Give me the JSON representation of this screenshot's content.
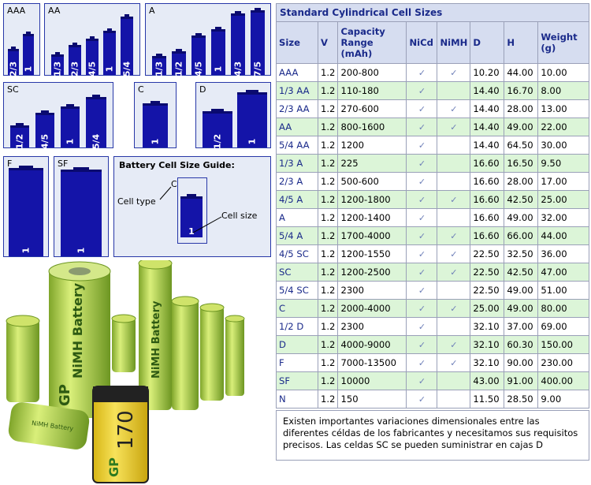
{
  "guide": {
    "panels": {
      "aaa": {
        "label": "AAA",
        "cells": [
          "2/3",
          "1"
        ]
      },
      "aa": {
        "label": "AA",
        "cells": [
          "1/3",
          "2/3",
          "4/5",
          "1",
          "5/4"
        ]
      },
      "a": {
        "label": "A",
        "cells": [
          "1/3",
          "1/2",
          "4/5",
          "1",
          "4/3",
          "7/5"
        ]
      },
      "sc": {
        "label": "SC",
        "cells": [
          "1/2",
          "4/5",
          "1",
          "5/4"
        ]
      },
      "c": {
        "label": "C",
        "cells": [
          "1"
        ]
      },
      "d": {
        "label": "D",
        "cells": [
          "1/2",
          "1"
        ]
      },
      "f": {
        "label": "F",
        "cells": [
          "1"
        ]
      },
      "sf": {
        "label": "SF",
        "cells": [
          "1"
        ]
      }
    },
    "legend": {
      "title": "Battery Cell Size Guide:",
      "type_letter": "C",
      "cell_type_label": "Cell type",
      "cell_size_label": "Cell size",
      "cell_size_value": "1"
    }
  },
  "table": {
    "title": "Standard Cylindrical Cell Sizes",
    "headers": [
      "Size",
      "V",
      "Capacity Range (mAh)",
      "NiCd",
      "NiMH",
      "D",
      "H",
      "Weight (g)"
    ],
    "check_glyph": "✓",
    "rows": [
      {
        "size": "AAA",
        "v": "1.2",
        "cap": "200-800",
        "nicd": true,
        "nimh": true,
        "d": "10.20",
        "h": "44.00",
        "w": "10.00"
      },
      {
        "size": "1/3 AA",
        "v": "1.2",
        "cap": "110-180",
        "nicd": true,
        "nimh": false,
        "d": "14.40",
        "h": "16.70",
        "w": "8.00"
      },
      {
        "size": "2/3 AA",
        "v": "1.2",
        "cap": "270-600",
        "nicd": true,
        "nimh": true,
        "d": "14.40",
        "h": "28.00",
        "w": "13.00"
      },
      {
        "size": "AA",
        "v": "1.2",
        "cap": "800-1600",
        "nicd": true,
        "nimh": true,
        "d": "14.40",
        "h": "49.00",
        "w": "22.00"
      },
      {
        "size": "5/4 AA",
        "v": "1.2",
        "cap": "1200",
        "nicd": true,
        "nimh": false,
        "d": "14.40",
        "h": "64.50",
        "w": "30.00"
      },
      {
        "size": "1/3 A",
        "v": "1.2",
        "cap": "225",
        "nicd": true,
        "nimh": false,
        "d": "16.60",
        "h": "16.50",
        "w": "9.50"
      },
      {
        "size": "2/3 A",
        "v": "1.2",
        "cap": "500-600",
        "nicd": true,
        "nimh": false,
        "d": "16.60",
        "h": "28.00",
        "w": "17.00"
      },
      {
        "size": "4/5 A",
        "v": "1.2",
        "cap": "1200-1800",
        "nicd": true,
        "nimh": true,
        "d": "16.60",
        "h": "42.50",
        "w": "25.00"
      },
      {
        "size": "A",
        "v": "1.2",
        "cap": "1200-1400",
        "nicd": true,
        "nimh": false,
        "d": "16.60",
        "h": "49.00",
        "w": "32.00"
      },
      {
        "size": "5/4 A",
        "v": "1.2",
        "cap": "1700-4000",
        "nicd": true,
        "nimh": true,
        "d": "16.60",
        "h": "66.00",
        "w": "44.00"
      },
      {
        "size": "4/5 SC",
        "v": "1.2",
        "cap": "1200-1550",
        "nicd": true,
        "nimh": true,
        "d": "22.50",
        "h": "32.50",
        "w": "36.00"
      },
      {
        "size": "SC",
        "v": "1.2",
        "cap": "1200-2500",
        "nicd": true,
        "nimh": true,
        "d": "22.50",
        "h": "42.50",
        "w": "47.00"
      },
      {
        "size": "5/4 SC",
        "v": "1.2",
        "cap": "2300",
        "nicd": true,
        "nimh": false,
        "d": "22.50",
        "h": "49.00",
        "w": "51.00"
      },
      {
        "size": "C",
        "v": "1.2",
        "cap": "2000-4000",
        "nicd": true,
        "nimh": true,
        "d": "25.00",
        "h": "49.00",
        "w": "80.00"
      },
      {
        "size": "1/2 D",
        "v": "1.2",
        "cap": "2300",
        "nicd": true,
        "nimh": false,
        "d": "32.10",
        "h": "37.00",
        "w": "69.00"
      },
      {
        "size": "D",
        "v": "1.2",
        "cap": "4000-9000",
        "nicd": true,
        "nimh": true,
        "d": "32.10",
        "h": "60.30",
        "w": "150.00"
      },
      {
        "size": "F",
        "v": "1.2",
        "cap": "7000-13500",
        "nicd": true,
        "nimh": true,
        "d": "32.10",
        "h": "90.00",
        "w": "230.00"
      },
      {
        "size": "SF",
        "v": "1.2",
        "cap": "10000",
        "nicd": true,
        "nimh": false,
        "d": "43.00",
        "h": "91.00",
        "w": "400.00"
      },
      {
        "size": "N",
        "v": "1.2",
        "cap": "150",
        "nicd": true,
        "nimh": false,
        "d": "11.50",
        "h": "28.50",
        "w": "9.00"
      }
    ]
  },
  "note": "Existen importantes variaciones dimensionales entre las diferentes céldas de los fabricantes y necesitamos sus requisitos precisos. Las celdas SC se pueden suministrar en cajas D",
  "photo": {
    "brand": "GP",
    "nimh_label": "NiMH Battery",
    "nimh_label_2": "NiMH Battery",
    "small_label": "NiMH Battery",
    "box_brand": "GP",
    "box_value": "170",
    "colors": {
      "green": "#b8d64a",
      "dark_green": "#4b7a20",
      "box": "#f0d32a"
    }
  }
}
